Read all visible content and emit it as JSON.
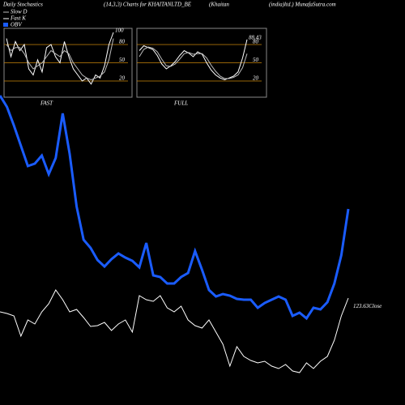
{
  "header": [
    "Daily Stochastics",
    "(14,3,3) Charts for KHAITANLTD_BE",
    "(Khaitan",
    "(india)ltd.) MunafaSutra.com"
  ],
  "chart_data": [
    {
      "type": "line",
      "title": "FAST",
      "ylim": [
        0,
        100
      ],
      "yticks": [
        20,
        50,
        80
      ],
      "grid": true,
      "grid_color": "#c8860b",
      "series": [
        {
          "name": "Fast K",
          "color": "#ffffff",
          "values": [
            90,
            60,
            85,
            70,
            80,
            40,
            30,
            55,
            35,
            75,
            80,
            60,
            50,
            85,
            60,
            40,
            30,
            20,
            25,
            15,
            30,
            25,
            45,
            80,
            100
          ]
        },
        {
          "name": "Slow D",
          "color": "#bbbbbb",
          "values": [
            80,
            70,
            75,
            75,
            65,
            50,
            40,
            45,
            50,
            60,
            70,
            65,
            60,
            70,
            65,
            50,
            40,
            30,
            25,
            22,
            25,
            28,
            35,
            55,
            90
          ]
        }
      ]
    },
    {
      "type": "line",
      "title": "FULL",
      "ylim": [
        0,
        100
      ],
      "yticks": [
        20,
        50,
        80
      ],
      "grid": true,
      "grid_color": "#c8860b",
      "series": [
        {
          "color": "#ffffff",
          "values": [
            70,
            78,
            75,
            72,
            62,
            48,
            40,
            45,
            52,
            62,
            70,
            66,
            60,
            68,
            64,
            50,
            38,
            30,
            25,
            22,
            25,
            28,
            35,
            58,
            88.43
          ]
        },
        {
          "color": "#bbbbbb",
          "values": [
            60,
            72,
            76,
            74,
            68,
            56,
            45,
            44,
            48,
            56,
            65,
            67,
            64,
            65,
            65,
            58,
            46,
            36,
            28,
            24,
            24,
            26,
            30,
            42,
            65
          ]
        }
      ]
    },
    {
      "type": "line",
      "ylim": [
        110.43,
        160.43
      ],
      "y2lim": [
        0,
        500
      ],
      "series": [
        {
          "name": "OBV",
          "color": "#1a5cff",
          "axis": "y2",
          "values": [
            382,
            368,
            345,
            320,
            295,
            298,
            308,
            285,
            305,
            360,
            310,
            245,
            204,
            194,
            179,
            171,
            180,
            187,
            182,
            178,
            170,
            200,
            160,
            158,
            150,
            150,
            158,
            163,
            190,
            167,
            142,
            134,
            137,
            135,
            131,
            130,
            130,
            120,
            126,
            130,
            134,
            130,
            110,
            114,
            107,
            120,
            118,
            127,
            150,
            185,
            242
          ]
        },
        {
          "name": "Close",
          "color": "#ffffff",
          "values": [
            121.93,
            121.73,
            121.43,
            118.93,
            120.93,
            120.43,
            121.93,
            122.93,
            124.63,
            123.43,
            121.93,
            122.23,
            121.23,
            120.13,
            120.23,
            120.63,
            119.63,
            120.43,
            120.93,
            119.43,
            123.93,
            123.43,
            123.23,
            123.93,
            122.43,
            121.93,
            122.63,
            120.93,
            120.23,
            119.93,
            120.93,
            119.43,
            117.93,
            115.23,
            117.63,
            116.43,
            115.93,
            115.63,
            115.83,
            115.23,
            114.93,
            115.43,
            114.63,
            114.43,
            115.63,
            114.93,
            115.83,
            116.43,
            118.43,
            121.43,
            123.63
          ]
        }
      ]
    }
  ]
}
